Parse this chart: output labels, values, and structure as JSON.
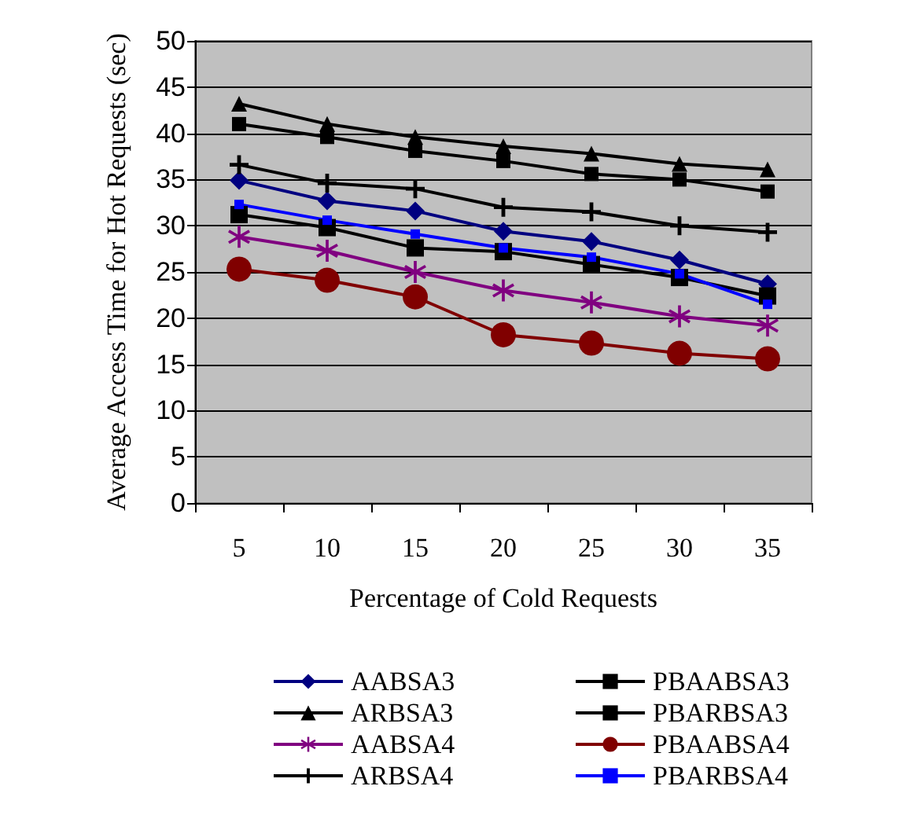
{
  "chart_data": {
    "type": "line",
    "xlabel": "Percentage of Cold Requests",
    "ylabel": "Average Access Time for Hot Requests (sec)",
    "categories": [
      "5",
      "10",
      "15",
      "20",
      "25",
      "30",
      "35"
    ],
    "ylim": [
      0,
      50
    ],
    "yticks": [
      0,
      5,
      10,
      15,
      20,
      25,
      30,
      35,
      40,
      45,
      50
    ],
    "grid": "y",
    "legend": "bottom",
    "series": [
      {
        "name": "AABSA3",
        "color": "#000080",
        "marker": "diamond",
        "values": [
          34.9,
          32.7,
          31.6,
          29.4,
          28.3,
          26.3,
          23.7
        ]
      },
      {
        "name": "PBAABSA3",
        "color": "#000000",
        "marker": "square",
        "values": [
          31.2,
          29.8,
          27.6,
          27.2,
          25.8,
          24.4,
          22.4
        ]
      },
      {
        "name": "ARBSA3",
        "color": "#000000",
        "marker": "triangle",
        "values": [
          43.2,
          41,
          39.6,
          38.6,
          37.8,
          36.7,
          36.1
        ]
      },
      {
        "name": "PBARBSA3",
        "color": "#000000",
        "marker": "square",
        "values": [
          41,
          39.6,
          38.1,
          37,
          35.6,
          35,
          33.7
        ]
      },
      {
        "name": "AABSA4",
        "color": "#800080",
        "marker": "star",
        "values": [
          28.8,
          27.3,
          25,
          23,
          21.7,
          20.2,
          19.2
        ]
      },
      {
        "name": "PBAABSA4",
        "color": "#800000",
        "marker": "circle",
        "values": [
          25.3,
          24.1,
          22.3,
          18.2,
          17.3,
          16.2,
          15.6
        ]
      },
      {
        "name": "ARBSA4",
        "color": "#000000",
        "marker": "cross",
        "values": [
          36.6,
          34.6,
          34,
          32,
          31.5,
          30,
          29.3
        ]
      },
      {
        "name": "PBARBSA4",
        "color": "#0000ff",
        "marker": "square",
        "values": [
          32.3,
          30.6,
          29.1,
          27.6,
          26.6,
          24.8,
          21.5
        ]
      }
    ]
  }
}
